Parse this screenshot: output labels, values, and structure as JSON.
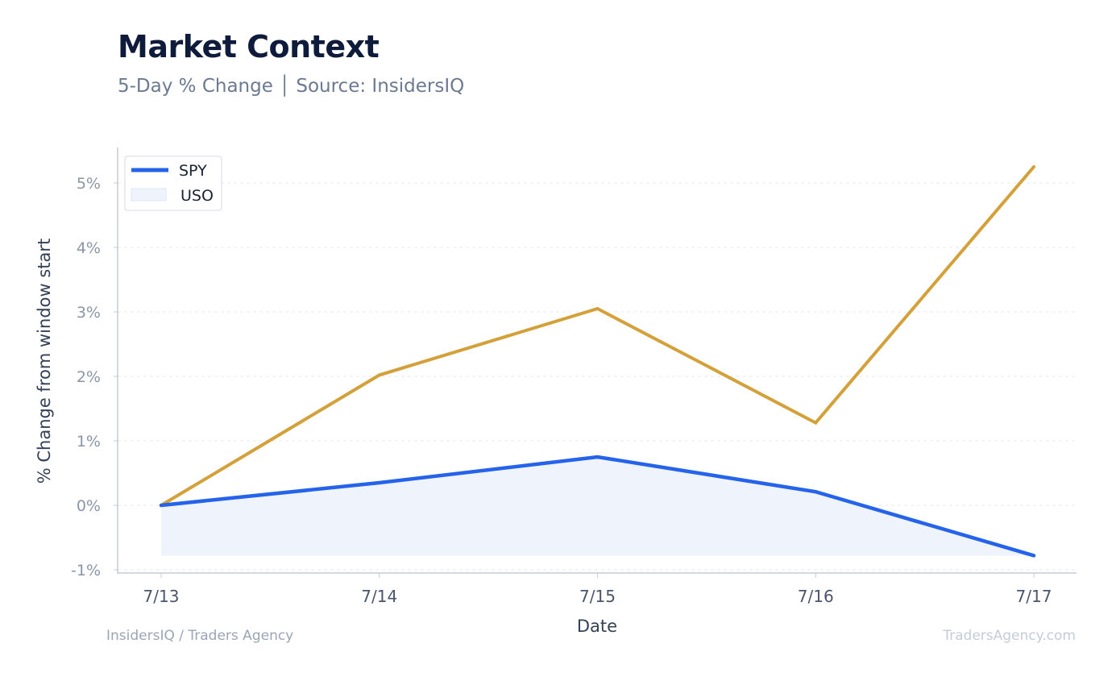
{
  "header": {
    "title": "Market Context",
    "subtitle": "5-Day % Change │ Source: InsidersIQ"
  },
  "footer": {
    "left": "InsidersIQ / Traders Agency",
    "right": "TradersAgency.com"
  },
  "colors": {
    "spy": "#2563eb",
    "uso": "#d4a03a",
    "fill": "#eef3fc",
    "grid": "#e6e9ef",
    "axis": "#c5cbd6",
    "tick_text": "#8a96a8",
    "label_text": "#344055"
  },
  "chart_data": {
    "type": "line",
    "title": "Market Context",
    "subtitle": "5-Day % Change │ Source: InsidersIQ",
    "xlabel": "Date",
    "ylabel": "% Change from window start",
    "categories": [
      "7/13",
      "7/14",
      "7/15",
      "7/16",
      "7/17"
    ],
    "yticks": [
      -1,
      0,
      1,
      2,
      3,
      4,
      5
    ],
    "ytick_labels": [
      "-1%",
      "0%",
      "1%",
      "2%",
      "3%",
      "4%",
      "5%"
    ],
    "ylim": [
      -1.05,
      5.55
    ],
    "grid": true,
    "legend": "top-left",
    "legend_entries": [
      "SPY",
      "USO"
    ],
    "series": [
      {
        "name": "SPY",
        "values": [
          0.0,
          0.35,
          0.75,
          0.21,
          -0.78
        ]
      },
      {
        "name": "",
        "values": [
          0.0,
          2.02,
          3.05,
          1.28,
          5.25
        ]
      }
    ],
    "fill_baseline": -0.78
  }
}
